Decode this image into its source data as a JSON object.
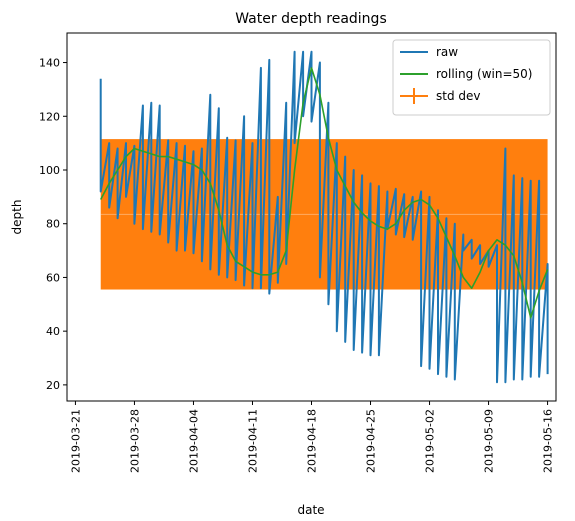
{
  "chart_data": {
    "type": "line",
    "title": "Water depth readings",
    "xlabel": "date",
    "ylabel": "depth",
    "xlim": [
      "2019-03-20",
      "2019-05-17"
    ],
    "ylim": [
      14,
      151
    ],
    "grid": false,
    "legend_position": "top-right",
    "x_ticks": [
      "2019-03-21",
      "2019-03-28",
      "2019-04-04",
      "2019-04-11",
      "2019-04-18",
      "2019-04-25",
      "2019-05-02",
      "2019-05-09",
      "2019-05-16"
    ],
    "y_ticks": [
      20,
      40,
      60,
      80,
      100,
      120,
      140
    ],
    "series": [
      {
        "name": "raw",
        "color": "#1f77b4",
        "points": [
          [
            "2019-03-24",
            134
          ],
          [
            "2019-03-24",
            92
          ],
          [
            "2019-03-25",
            110
          ],
          [
            "2019-03-25",
            86
          ],
          [
            "2019-03-26",
            108
          ],
          [
            "2019-03-26",
            82
          ],
          [
            "2019-03-27",
            110
          ],
          [
            "2019-03-27",
            90
          ],
          [
            "2019-03-28",
            109
          ],
          [
            "2019-03-28",
            80
          ],
          [
            "2019-03-29",
            124
          ],
          [
            "2019-03-29",
            78
          ],
          [
            "2019-03-30",
            125
          ],
          [
            "2019-03-30",
            77
          ],
          [
            "2019-03-31",
            124
          ],
          [
            "2019-03-31",
            76
          ],
          [
            "2019-04-01",
            111
          ],
          [
            "2019-04-01",
            73
          ],
          [
            "2019-04-02",
            110
          ],
          [
            "2019-04-02",
            70
          ],
          [
            "2019-04-03",
            109
          ],
          [
            "2019-04-03",
            70
          ],
          [
            "2019-04-04",
            107
          ],
          [
            "2019-04-04",
            69
          ],
          [
            "2019-04-05",
            108
          ],
          [
            "2019-04-05",
            66
          ],
          [
            "2019-04-06",
            128
          ],
          [
            "2019-04-06",
            63
          ],
          [
            "2019-04-07",
            123
          ],
          [
            "2019-04-07",
            61
          ],
          [
            "2019-04-08",
            112
          ],
          [
            "2019-04-08",
            60
          ],
          [
            "2019-04-09",
            111
          ],
          [
            "2019-04-09",
            59
          ],
          [
            "2019-04-10",
            120
          ],
          [
            "2019-04-10",
            57
          ],
          [
            "2019-04-11",
            110
          ],
          [
            "2019-04-11",
            56
          ],
          [
            "2019-04-12",
            138
          ],
          [
            "2019-04-12",
            56
          ],
          [
            "2019-04-13",
            141
          ],
          [
            "2019-04-13",
            54
          ],
          [
            "2019-04-14",
            90
          ],
          [
            "2019-04-14",
            58
          ],
          [
            "2019-04-15",
            125
          ],
          [
            "2019-04-15",
            65
          ],
          [
            "2019-04-16",
            144
          ],
          [
            "2019-04-16",
            110
          ],
          [
            "2019-04-17",
            144
          ],
          [
            "2019-04-17",
            120
          ],
          [
            "2019-04-18",
            144
          ],
          [
            "2019-04-18",
            118
          ],
          [
            "2019-04-19",
            140
          ],
          [
            "2019-04-19",
            60
          ],
          [
            "2019-04-20",
            125
          ],
          [
            "2019-04-20",
            50
          ],
          [
            "2019-04-21",
            110
          ],
          [
            "2019-04-21",
            40
          ],
          [
            "2019-04-22",
            105
          ],
          [
            "2019-04-22",
            36
          ],
          [
            "2019-04-23",
            100
          ],
          [
            "2019-04-23",
            33
          ],
          [
            "2019-04-24",
            98
          ],
          [
            "2019-04-24",
            32
          ],
          [
            "2019-04-25",
            95
          ],
          [
            "2019-04-25",
            31
          ],
          [
            "2019-04-26",
            94
          ],
          [
            "2019-04-26",
            31
          ],
          [
            "2019-04-27",
            92
          ],
          [
            "2019-04-27",
            78
          ],
          [
            "2019-04-28",
            93
          ],
          [
            "2019-04-28",
            76
          ],
          [
            "2019-04-29",
            91
          ],
          [
            "2019-04-29",
            75
          ],
          [
            "2019-04-30",
            90
          ],
          [
            "2019-04-30",
            74
          ],
          [
            "2019-05-01",
            92
          ],
          [
            "2019-05-01",
            27
          ],
          [
            "2019-05-02",
            90
          ],
          [
            "2019-05-02",
            26
          ],
          [
            "2019-05-03",
            85
          ],
          [
            "2019-05-03",
            24
          ],
          [
            "2019-05-04",
            82
          ],
          [
            "2019-05-04",
            23
          ],
          [
            "2019-05-05",
            80
          ],
          [
            "2019-05-05",
            22
          ],
          [
            "2019-05-06",
            76
          ],
          [
            "2019-05-06",
            70
          ],
          [
            "2019-05-07",
            74
          ],
          [
            "2019-05-07",
            67
          ],
          [
            "2019-05-08",
            72
          ],
          [
            "2019-05-08",
            65
          ],
          [
            "2019-05-09",
            70
          ],
          [
            "2019-05-09",
            64
          ],
          [
            "2019-05-10",
            72
          ],
          [
            "2019-05-10",
            21
          ],
          [
            "2019-05-11",
            108
          ],
          [
            "2019-05-11",
            21
          ],
          [
            "2019-05-12",
            98
          ],
          [
            "2019-05-12",
            22
          ],
          [
            "2019-05-13",
            97
          ],
          [
            "2019-05-13",
            22
          ],
          [
            "2019-05-14",
            96
          ],
          [
            "2019-05-14",
            23
          ],
          [
            "2019-05-15",
            96
          ],
          [
            "2019-05-15",
            23
          ],
          [
            "2019-05-16",
            65
          ],
          [
            "2019-05-16",
            24
          ]
        ]
      },
      {
        "name": "rolling (win=50)",
        "color": "#2ca02c",
        "points": [
          [
            "2019-03-24",
            89
          ],
          [
            "2019-03-25",
            95
          ],
          [
            "2019-03-26",
            100
          ],
          [
            "2019-03-27",
            105
          ],
          [
            "2019-03-28",
            108
          ],
          [
            "2019-03-29",
            107
          ],
          [
            "2019-03-30",
            106
          ],
          [
            "2019-03-31",
            105
          ],
          [
            "2019-04-01",
            105
          ],
          [
            "2019-04-02",
            104
          ],
          [
            "2019-04-03",
            103
          ],
          [
            "2019-04-04",
            102
          ],
          [
            "2019-04-05",
            100
          ],
          [
            "2019-04-06",
            95
          ],
          [
            "2019-04-07",
            85
          ],
          [
            "2019-04-08",
            72
          ],
          [
            "2019-04-09",
            66
          ],
          [
            "2019-04-10",
            64
          ],
          [
            "2019-04-11",
            62
          ],
          [
            "2019-04-12",
            61
          ],
          [
            "2019-04-13",
            61
          ],
          [
            "2019-04-14",
            62
          ],
          [
            "2019-04-15",
            70
          ],
          [
            "2019-04-16",
            100
          ],
          [
            "2019-04-17",
            125
          ],
          [
            "2019-04-18",
            138
          ],
          [
            "2019-04-19",
            128
          ],
          [
            "2019-04-20",
            112
          ],
          [
            "2019-04-21",
            100
          ],
          [
            "2019-04-22",
            94
          ],
          [
            "2019-04-23",
            88
          ],
          [
            "2019-04-24",
            84
          ],
          [
            "2019-04-25",
            81
          ],
          [
            "2019-04-26",
            79
          ],
          [
            "2019-04-27",
            78
          ],
          [
            "2019-04-28",
            80
          ],
          [
            "2019-04-29",
            85
          ],
          [
            "2019-04-30",
            88
          ],
          [
            "2019-05-01",
            89
          ],
          [
            "2019-05-02",
            87
          ],
          [
            "2019-05-03",
            82
          ],
          [
            "2019-05-04",
            75
          ],
          [
            "2019-05-05",
            68
          ],
          [
            "2019-05-06",
            60
          ],
          [
            "2019-05-07",
            56
          ],
          [
            "2019-05-08",
            62
          ],
          [
            "2019-05-09",
            70
          ],
          [
            "2019-05-10",
            74
          ],
          [
            "2019-05-11",
            72
          ],
          [
            "2019-05-12",
            68
          ],
          [
            "2019-05-13",
            58
          ],
          [
            "2019-05-14",
            45
          ],
          [
            "2019-05-15",
            55
          ],
          [
            "2019-05-16",
            63
          ]
        ]
      }
    ],
    "errorbar": {
      "name": "std dev",
      "color": "#ff7f0e",
      "x_start": "2019-03-24",
      "x_end": "2019-05-16",
      "mean": 83.5,
      "std": 28
    }
  }
}
